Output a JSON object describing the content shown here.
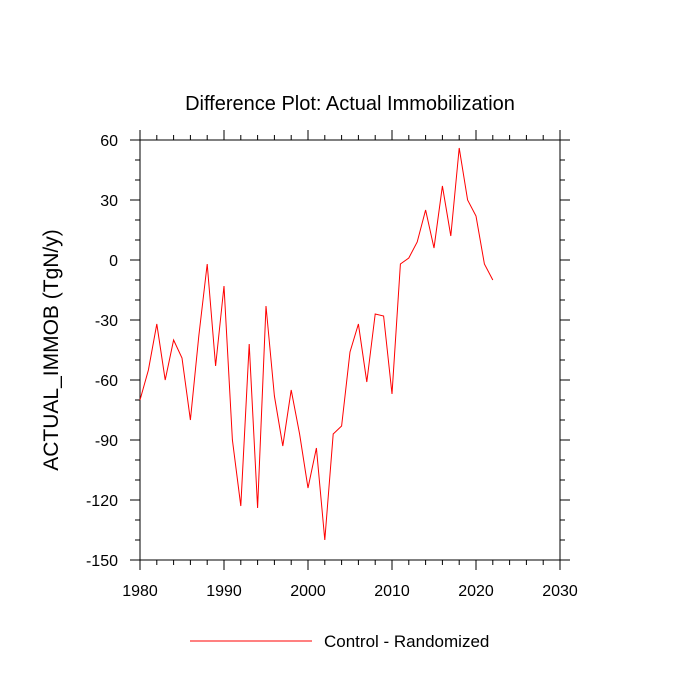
{
  "chart_data": {
    "type": "line",
    "title": "Difference Plot: Actual Immobilization",
    "xlabel": "",
    "ylabel": "ACTUAL_IMMOB  (TgN/y)",
    "xlim": [
      1980,
      2030
    ],
    "ylim": [
      -150,
      60
    ],
    "xticks": [
      1980,
      1990,
      2000,
      2010,
      2020,
      2030
    ],
    "yticks": [
      60,
      30,
      0,
      -30,
      -60,
      -90,
      -120,
      -150
    ],
    "xtick_labels": [
      "1980",
      "1990",
      "2000",
      "2010",
      "2020",
      "2030"
    ],
    "ytick_labels": [
      "60",
      "30",
      "0",
      "-30",
      "-60",
      "-90",
      "-120",
      "-150"
    ],
    "x_minor_step": 2,
    "y_minor_step": 10,
    "grid": false,
    "legend_position": "bottom-center",
    "series": [
      {
        "name": "Control - Randomized",
        "color": "#ff0000",
        "x": [
          1980,
          1981,
          1982,
          1983,
          1984,
          1985,
          1986,
          1987,
          1988,
          1989,
          1990,
          1991,
          1992,
          1993,
          1994,
          1995,
          1996,
          1997,
          1998,
          1999,
          2000,
          2001,
          2002,
          2003,
          2004,
          2005,
          2006,
          2007,
          2008,
          2009,
          2010,
          2011,
          2012,
          2013,
          2014,
          2015,
          2016,
          2017,
          2018,
          2019,
          2020,
          2021,
          2022
        ],
        "y": [
          -70,
          -55,
          -32,
          -60,
          -40,
          -49,
          -80,
          -38,
          -2,
          -53,
          -13,
          -90,
          -123,
          -42,
          -124,
          -23,
          -68,
          -93,
          -65,
          -87,
          -114,
          -94,
          -140,
          -87,
          -83,
          -46,
          -32,
          -61,
          -27,
          -28,
          -67,
          -2,
          1,
          9,
          25,
          6,
          37,
          12,
          56,
          30,
          22,
          -2,
          -10
        ]
      }
    ]
  }
}
